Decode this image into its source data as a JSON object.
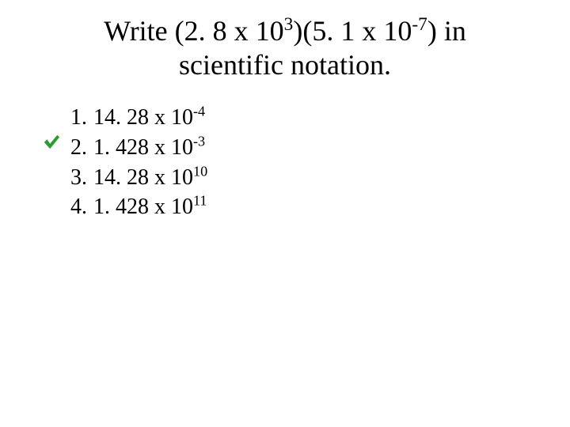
{
  "title": {
    "prefix": "Write (2. 8 x 10",
    "exp1": "3",
    "mid": ")(5. 1 x 10",
    "exp2": "-7",
    "suffix": ") in",
    "line2": "scientific notation."
  },
  "answers": [
    {
      "num": "1.",
      "mantissa": "14. 28 x 10",
      "exp": "-4",
      "correct": false
    },
    {
      "num": "2.",
      "mantissa": "1. 428 x 10",
      "exp": "-3",
      "correct": true
    },
    {
      "num": "3.",
      "mantissa": "14. 28 x 10",
      "exp": "10",
      "correct": false
    },
    {
      "num": "4.",
      "mantissa": "1. 428 x 10",
      "exp": "11",
      "correct": false
    }
  ],
  "style": {
    "check_color": "#2e9b2e",
    "text_color": "#000000",
    "background": "#ffffff",
    "title_fontsize": 36,
    "answer_fontsize": 28
  }
}
